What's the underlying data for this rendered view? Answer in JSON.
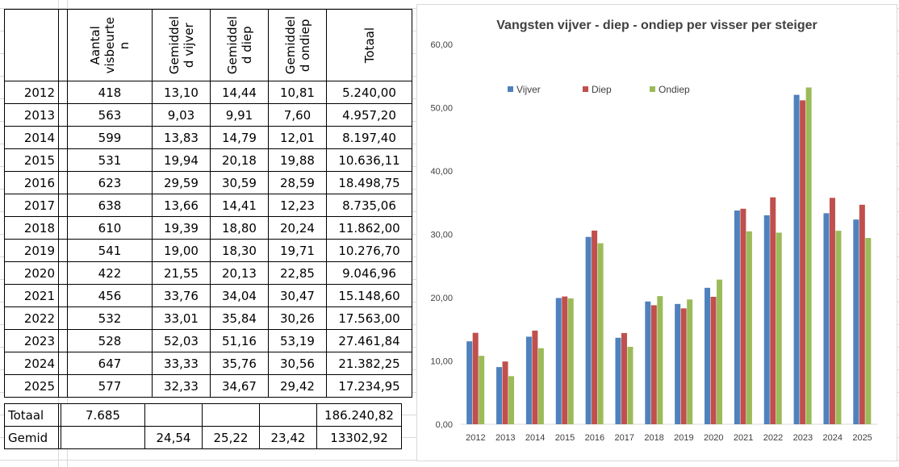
{
  "table": {
    "headers": [
      "Aantal visbeurten",
      "Gemiddeld vijver",
      "Gemiddeld diep",
      "Gemiddeld ondiep",
      "Totaal"
    ],
    "header_display": [
      [
        "Aantal",
        "visbeurte",
        "n"
      ],
      [
        "Gemiddel",
        "d vijver"
      ],
      [
        "Gemiddel",
        "d diep"
      ],
      [
        "Gemiddel",
        "d ondiep"
      ],
      [
        "Totaal"
      ]
    ],
    "rows": [
      [
        "2012",
        "418",
        "13,10",
        "14,44",
        "10,81",
        "5.240,00"
      ],
      [
        "2013",
        "563",
        "9,03",
        "9,91",
        "7,60",
        "4.957,20"
      ],
      [
        "2014",
        "599",
        "13,83",
        "14,79",
        "12,01",
        "8.197,40"
      ],
      [
        "2015",
        "531",
        "19,94",
        "20,18",
        "19,88",
        "10.636,11"
      ],
      [
        "2016",
        "623",
        "29,59",
        "30,59",
        "28,59",
        "18.498,75"
      ],
      [
        "2017",
        "638",
        "13,66",
        "14,41",
        "12,23",
        "8.735,06"
      ],
      [
        "2018",
        "610",
        "19,39",
        "18,80",
        "20,24",
        "11.862,00"
      ],
      [
        "2019",
        "541",
        "19,00",
        "18,30",
        "19,71",
        "10.276,70"
      ],
      [
        "2020",
        "422",
        "21,55",
        "20,13",
        "22,85",
        "9.046,96"
      ],
      [
        "2021",
        "456",
        "33,76",
        "34,04",
        "30,47",
        "15.148,60"
      ],
      [
        "2022",
        "532",
        "33,01",
        "35,84",
        "30,26",
        "17.563,00"
      ],
      [
        "2023",
        "528",
        "52,03",
        "51,16",
        "53,19",
        "27.461,84"
      ],
      [
        "2024",
        "647",
        "33,33",
        "35,76",
        "30,56",
        "21.382,25"
      ],
      [
        "2025",
        "577",
        "32,33",
        "34,67",
        "29,42",
        "17.234,95"
      ]
    ],
    "summary": [
      [
        "Totaal",
        "7.685",
        "",
        "",
        "",
        "186.240,82"
      ],
      [
        "Gemid",
        "",
        "24,54",
        "25,22",
        "23,42",
        "13302,92"
      ]
    ]
  },
  "chart_data": {
    "type": "bar",
    "title": "Vangsten vijver - diep - ondiep per visser per steiger",
    "categories": [
      "2012",
      "2013",
      "2014",
      "2015",
      "2016",
      "2017",
      "2018",
      "2019",
      "2020",
      "2021",
      "2022",
      "2023",
      "2024",
      "2025"
    ],
    "series": [
      {
        "name": "Vijver",
        "color": "#4f81bd",
        "values": [
          13.1,
          9.03,
          13.83,
          19.94,
          29.59,
          13.66,
          19.39,
          19.0,
          21.55,
          33.76,
          33.01,
          52.03,
          33.33,
          32.33
        ]
      },
      {
        "name": "Diep",
        "color": "#c0504d",
        "values": [
          14.44,
          9.91,
          14.79,
          20.18,
          30.59,
          14.41,
          18.8,
          18.3,
          20.13,
          34.04,
          35.84,
          51.16,
          35.76,
          34.67
        ]
      },
      {
        "name": "Ondiep",
        "color": "#9bbb59",
        "values": [
          10.81,
          7.6,
          12.01,
          19.88,
          28.59,
          12.23,
          20.24,
          19.71,
          22.85,
          30.47,
          30.26,
          53.19,
          30.56,
          29.42
        ]
      }
    ],
    "yticks": [
      "0,00",
      "10,00",
      "20,00",
      "30,00",
      "40,00",
      "50,00",
      "60,00"
    ],
    "ylim": [
      0,
      60
    ],
    "legend": "top-left",
    "grid": false
  }
}
